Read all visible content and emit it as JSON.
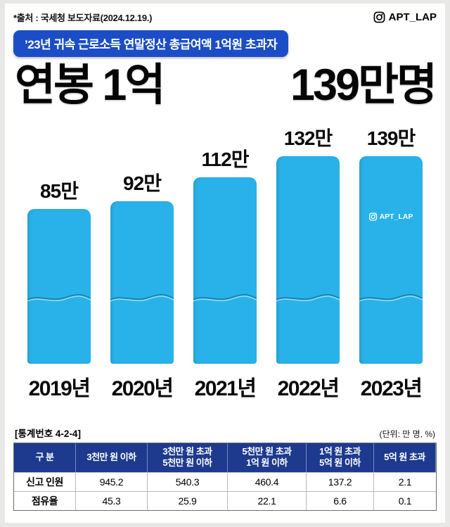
{
  "header": {
    "source": "*출처 : 국세청 보도자료(2024.12.19.)",
    "account": "APT_LAP"
  },
  "banner": {
    "text": "’23년 귀속 근로소득 연말정산 총급여액 1억원 초과자",
    "bg": "#1b4ec6"
  },
  "headline": {
    "left": "연봉 1억",
    "right": "139만명"
  },
  "watermark": {
    "account": "APT_LAP"
  },
  "chart_data": {
    "type": "bar",
    "title": "연봉 1억 139만명",
    "subtitle": "’23년 귀속 근로소득 연말정산 총급여액 1억원 초과자",
    "categories": [
      "2019년",
      "2020년",
      "2021년",
      "2022년",
      "2023년"
    ],
    "values": [
      85,
      92,
      112,
      132,
      139
    ],
    "value_labels": [
      "85만",
      "92만",
      "112만",
      "132만",
      "139만"
    ],
    "unit": "만 명",
    "bar_color": "#29b2e9",
    "axis_break": true,
    "legend": "none",
    "grid": false
  },
  "table": {
    "stat_no": "[통계번호 4-2-4]",
    "unit_note": "(단위: 만 명, %)",
    "header_bg": "#1e3a8e",
    "headers": [
      "구 분",
      "3천만 원 이하",
      "3천만 원 초과\n5천만 원 이하",
      "5천만 원 초과\n1억 원 이하",
      "1억 원 초과\n5억 원 이하",
      "5억 원 초과"
    ],
    "rows": [
      {
        "label": "신고 인원",
        "values": [
          "945.2",
          "540.3",
          "460.4",
          "137.2",
          "2.1"
        ]
      },
      {
        "label": "점유율",
        "values": [
          "45.3",
          "25.9",
          "22.1",
          "6.6",
          "0.1"
        ]
      }
    ]
  }
}
